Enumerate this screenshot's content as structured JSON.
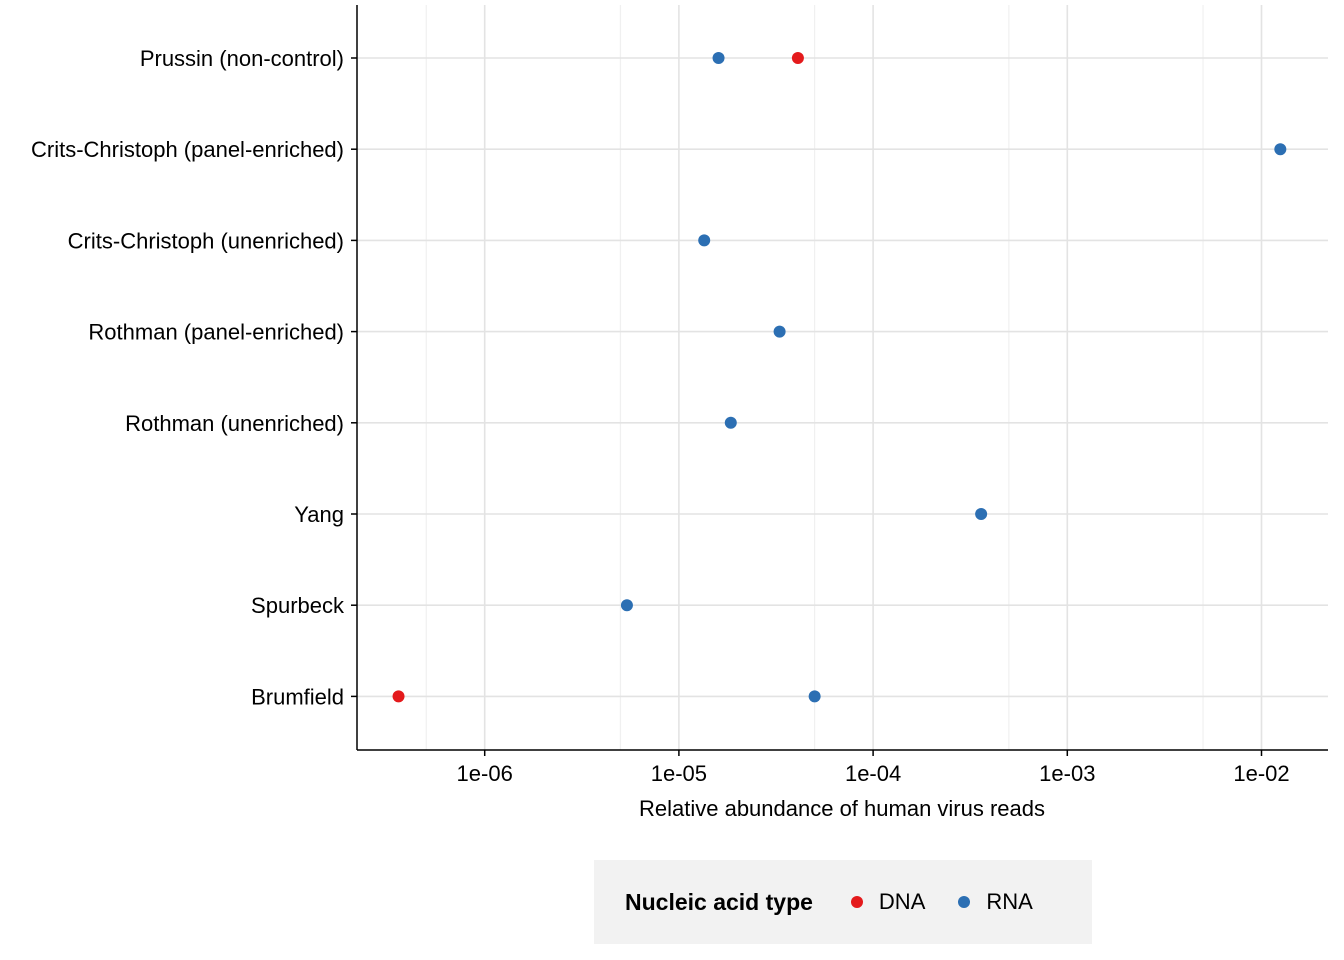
{
  "chart_data": {
    "type": "scatter",
    "xlabel": "Relative abundance of human virus reads",
    "xscale": "log10",
    "xlim": [
      2.2e-07,
      0.022
    ],
    "xticks": [
      1e-06,
      1e-05,
      0.0001,
      0.001,
      0.01
    ],
    "xtick_labels": [
      "1e-06",
      "1e-05",
      "1e-04",
      "1e-03",
      "1e-02"
    ],
    "categories": [
      "Prussin (non-control)",
      "Crits-Christoph (panel-enriched)",
      "Crits-Christoph (unenriched)",
      "Rothman (panel-enriched)",
      "Rothman (unenriched)",
      "Yang",
      "Spurbeck",
      "Brumfield"
    ],
    "series": [
      {
        "name": "DNA",
        "color": "#e41a1c",
        "points": [
          {
            "category": "Prussin (non-control)",
            "x": 4.1e-05
          },
          {
            "category": "Brumfield",
            "x": 3.6e-07
          }
        ]
      },
      {
        "name": "RNA",
        "color": "#2c6fb3",
        "points": [
          {
            "category": "Prussin (non-control)",
            "x": 1.6e-05
          },
          {
            "category": "Crits-Christoph (panel-enriched)",
            "x": 0.0125
          },
          {
            "category": "Crits-Christoph (unenriched)",
            "x": 1.35e-05
          },
          {
            "category": "Rothman (panel-enriched)",
            "x": 3.3e-05
          },
          {
            "category": "Rothman (unenriched)",
            "x": 1.85e-05
          },
          {
            "category": "Yang",
            "x": 0.00036
          },
          {
            "category": "Spurbeck",
            "x": 5.4e-06
          },
          {
            "category": "Brumfield",
            "x": 5e-05
          }
        ]
      }
    ],
    "grid": true,
    "legend": {
      "title": "Nucleic acid type",
      "position": "bottom",
      "entries": [
        "DNA",
        "RNA"
      ]
    }
  }
}
